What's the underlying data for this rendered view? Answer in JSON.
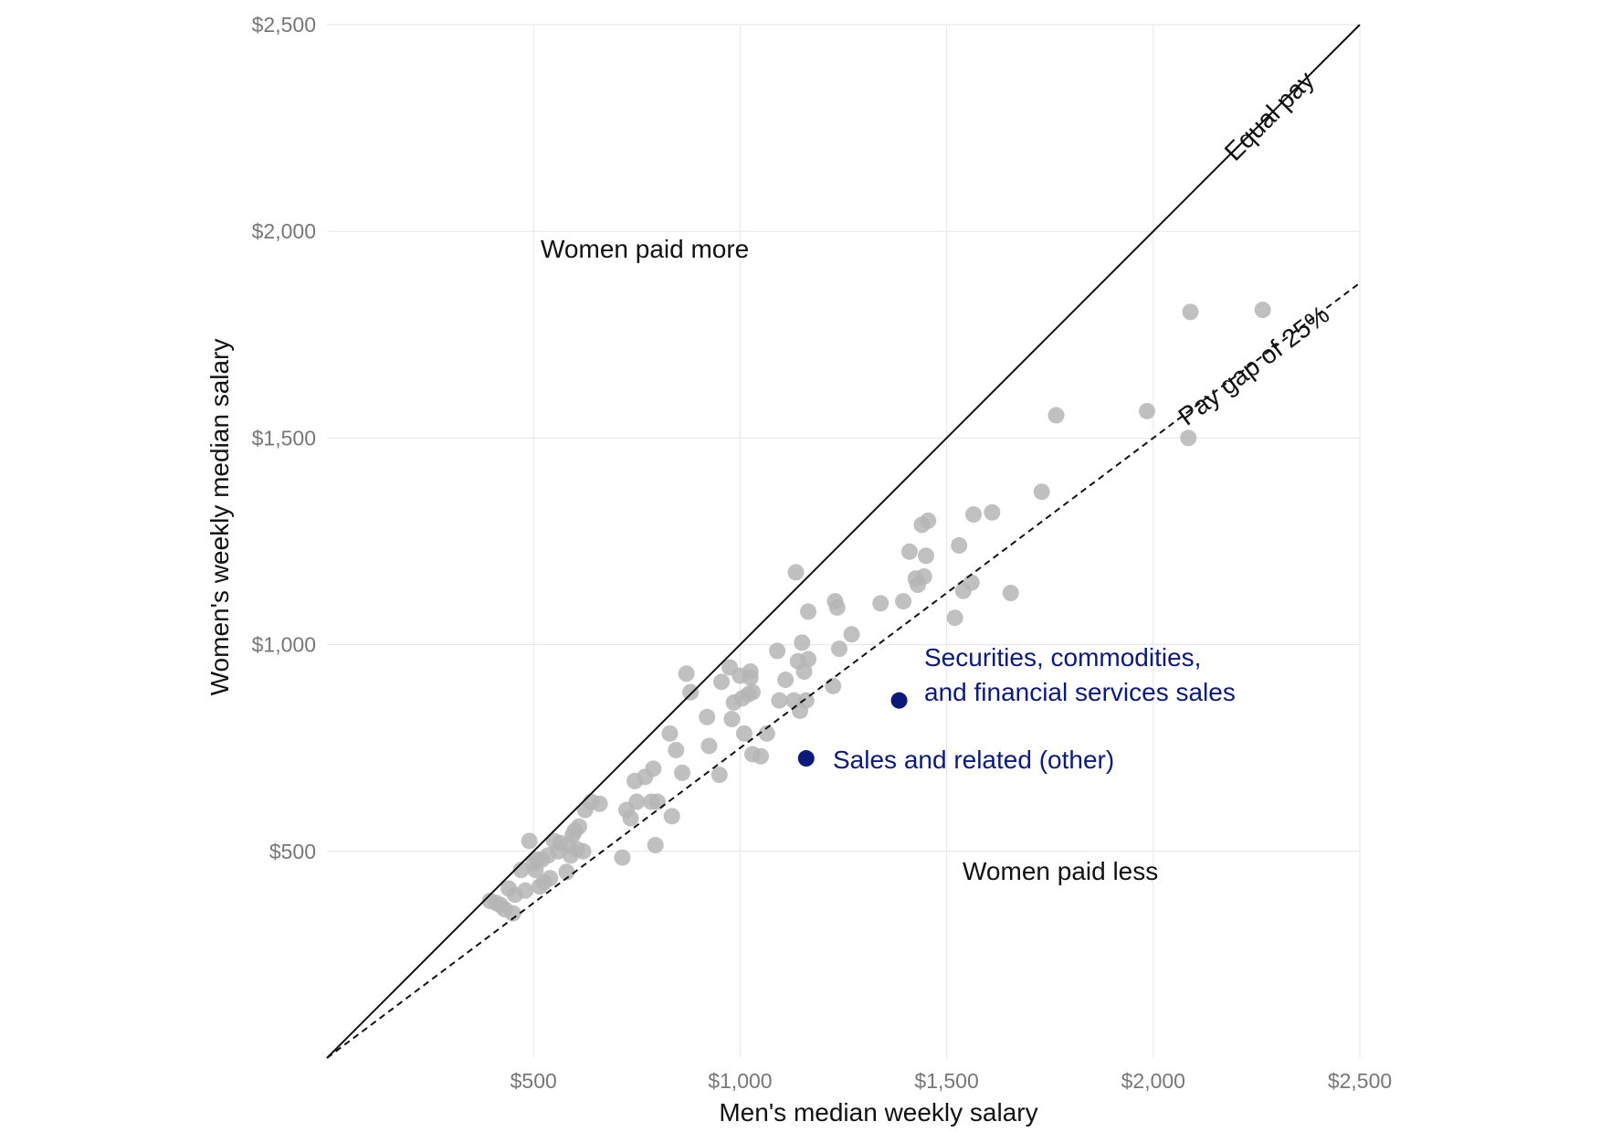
{
  "chart_data": {
    "type": "scatter",
    "xlabel": "Men's median weekly salary",
    "ylabel": "Women's weekly median salary",
    "xlim": [
      0,
      2500
    ],
    "ylim": [
      0,
      2500
    ],
    "x_ticks": [
      500,
      1000,
      1500,
      2000,
      2500
    ],
    "y_ticks": [
      500,
      1000,
      1500,
      2000,
      2500
    ],
    "x_tick_labels": [
      "$500",
      "$1,000",
      "$1,500",
      "$2,000",
      "$2,500"
    ],
    "y_tick_labels": [
      "$500",
      "$1,000",
      "$1,500",
      "$2,000",
      "$2,500"
    ],
    "grid": true,
    "colors": {
      "points": "#b5b5b5",
      "highlight": "#0b1a7a",
      "grid": "#e6e6e6",
      "lines": "#111111"
    },
    "reference_lines": [
      {
        "label": "Equal pay",
        "slope": 1.0,
        "style": "solid"
      },
      {
        "label": "Pay gap of 25%",
        "slope": 0.75,
        "style": "dashed"
      }
    ],
    "region_labels": {
      "above": "Women paid more",
      "below": "Women paid less"
    },
    "points": [
      [
        395,
        380
      ],
      [
        410,
        375
      ],
      [
        420,
        370
      ],
      [
        430,
        360
      ],
      [
        440,
        410
      ],
      [
        450,
        350
      ],
      [
        455,
        395
      ],
      [
        470,
        455
      ],
      [
        480,
        405
      ],
      [
        490,
        525
      ],
      [
        500,
        470
      ],
      [
        505,
        455
      ],
      [
        510,
        480
      ],
      [
        515,
        415
      ],
      [
        520,
        480
      ],
      [
        525,
        425
      ],
      [
        535,
        490
      ],
      [
        540,
        435
      ],
      [
        550,
        525
      ],
      [
        560,
        500
      ],
      [
        565,
        520
      ],
      [
        580,
        450
      ],
      [
        585,
        515
      ],
      [
        590,
        490
      ],
      [
        595,
        540
      ],
      [
        600,
        550
      ],
      [
        605,
        505
      ],
      [
        610,
        560
      ],
      [
        620,
        500
      ],
      [
        625,
        600
      ],
      [
        640,
        620
      ],
      [
        660,
        615
      ],
      [
        715,
        485
      ],
      [
        725,
        600
      ],
      [
        735,
        580
      ],
      [
        745,
        670
      ],
      [
        750,
        620
      ],
      [
        770,
        680
      ],
      [
        785,
        620
      ],
      [
        790,
        700
      ],
      [
        795,
        515
      ],
      [
        800,
        620
      ],
      [
        830,
        785
      ],
      [
        835,
        585
      ],
      [
        845,
        745
      ],
      [
        860,
        690
      ],
      [
        870,
        930
      ],
      [
        880,
        885
      ],
      [
        920,
        825
      ],
      [
        925,
        755
      ],
      [
        950,
        685
      ],
      [
        955,
        910
      ],
      [
        975,
        945
      ],
      [
        980,
        820
      ],
      [
        985,
        860
      ],
      [
        1000,
        925
      ],
      [
        1005,
        870
      ],
      [
        1010,
        785
      ],
      [
        1020,
        880
      ],
      [
        1025,
        935
      ],
      [
        1025,
        920
      ],
      [
        1030,
        885
      ],
      [
        1030,
        735
      ],
      [
        1050,
        730
      ],
      [
        1065,
        785
      ],
      [
        1090,
        985
      ],
      [
        1095,
        865
      ],
      [
        1110,
        915
      ],
      [
        1130,
        865
      ],
      [
        1135,
        1175
      ],
      [
        1140,
        960
      ],
      [
        1145,
        840
      ],
      [
        1150,
        1005
      ],
      [
        1155,
        935
      ],
      [
        1160,
        865
      ],
      [
        1165,
        965
      ],
      [
        1165,
        1080
      ],
      [
        1225,
        900
      ],
      [
        1230,
        1105
      ],
      [
        1235,
        1090
      ],
      [
        1240,
        990
      ],
      [
        1270,
        1025
      ],
      [
        1340,
        1100
      ],
      [
        1395,
        1105
      ],
      [
        1410,
        1225
      ],
      [
        1425,
        1160
      ],
      [
        1430,
        1145
      ],
      [
        1440,
        1290
      ],
      [
        1445,
        1165
      ],
      [
        1450,
        1215
      ],
      [
        1455,
        1300
      ],
      [
        1520,
        1065
      ],
      [
        1530,
        1240
      ],
      [
        1540,
        1130
      ],
      [
        1560,
        1150
      ],
      [
        1565,
        1315
      ],
      [
        1610,
        1320
      ],
      [
        1655,
        1125
      ],
      [
        1730,
        1370
      ],
      [
        1765,
        1555
      ],
      [
        1985,
        1565
      ],
      [
        2085,
        1500
      ],
      [
        2090,
        1805
      ],
      [
        2265,
        1810
      ]
    ],
    "highlighted": [
      {
        "x": 1385,
        "y": 865,
        "label_lines": [
          "Securities, commodities,",
          "and financial services sales"
        ]
      },
      {
        "x": 1160,
        "y": 725,
        "label_lines": [
          "Sales and related (other)"
        ]
      }
    ]
  }
}
